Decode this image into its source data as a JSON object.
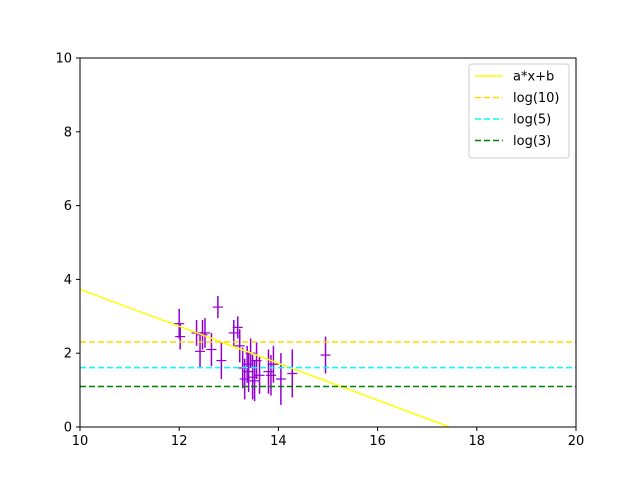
{
  "chart_data": {
    "type": "scatter",
    "title": "",
    "xlabel": "",
    "ylabel": "",
    "xlim": [
      10,
      20
    ],
    "ylim": [
      0,
      10
    ],
    "x_ticks": [
      "10",
      "12",
      "14",
      "16",
      "18",
      "20"
    ],
    "y_ticks": [
      "0",
      "2",
      "4",
      "6",
      "8",
      "10"
    ],
    "grid": false,
    "legend_position": "top-right",
    "series": [
      {
        "name": "",
        "kind": "errorbar",
        "color": "#9400d3",
        "points": [
          {
            "x": 12.0,
            "y": 2.8,
            "err": 0.4
          },
          {
            "x": 12.02,
            "y": 2.45,
            "err": 0.35
          },
          {
            "x": 12.35,
            "y": 2.55,
            "err": 0.35
          },
          {
            "x": 12.42,
            "y": 2.05,
            "err": 0.45
          },
          {
            "x": 12.47,
            "y": 2.5,
            "err": 0.4
          },
          {
            "x": 12.52,
            "y": 2.55,
            "err": 0.4
          },
          {
            "x": 12.65,
            "y": 2.1,
            "err": 0.45
          },
          {
            "x": 12.78,
            "y": 3.25,
            "err": 0.3
          },
          {
            "x": 12.85,
            "y": 1.8,
            "err": 0.5
          },
          {
            "x": 13.1,
            "y": 2.55,
            "err": 0.35
          },
          {
            "x": 13.18,
            "y": 2.7,
            "err": 0.3
          },
          {
            "x": 13.22,
            "y": 2.2,
            "err": 0.45
          },
          {
            "x": 13.28,
            "y": 1.6,
            "err": 0.55
          },
          {
            "x": 13.32,
            "y": 1.3,
            "err": 0.55
          },
          {
            "x": 13.37,
            "y": 1.7,
            "err": 0.5
          },
          {
            "x": 13.4,
            "y": 1.5,
            "err": 0.55
          },
          {
            "x": 13.44,
            "y": 2.0,
            "err": 0.4
          },
          {
            "x": 13.48,
            "y": 1.35,
            "err": 0.6
          },
          {
            "x": 13.52,
            "y": 1.25,
            "err": 0.55
          },
          {
            "x": 13.56,
            "y": 1.8,
            "err": 0.5
          },
          {
            "x": 13.62,
            "y": 1.4,
            "err": 0.5
          },
          {
            "x": 13.8,
            "y": 1.5,
            "err": 0.6
          },
          {
            "x": 13.85,
            "y": 1.4,
            "err": 0.55
          },
          {
            "x": 13.9,
            "y": 1.7,
            "err": 0.5
          },
          {
            "x": 14.05,
            "y": 1.3,
            "err": 0.7
          },
          {
            "x": 14.28,
            "y": 1.45,
            "err": 0.65
          },
          {
            "x": 14.95,
            "y": 1.95,
            "err": 0.5
          }
        ]
      },
      {
        "name": "a*x+b",
        "kind": "line",
        "color": "#ffff00",
        "dash": "solid",
        "x": [
          10,
          17.45
        ],
        "y": [
          3.73,
          0
        ]
      },
      {
        "name": "log(10)",
        "kind": "hline",
        "color": "#ffd700",
        "dash": "dashed",
        "y": 2.302585
      },
      {
        "name": "log(5)",
        "kind": "hline",
        "color": "#00ffff",
        "dash": "dashed",
        "y": 1.609438
      },
      {
        "name": "log(3)",
        "kind": "hline",
        "color": "#008000",
        "dash": "dashed",
        "y": 1.098612
      }
    ]
  }
}
